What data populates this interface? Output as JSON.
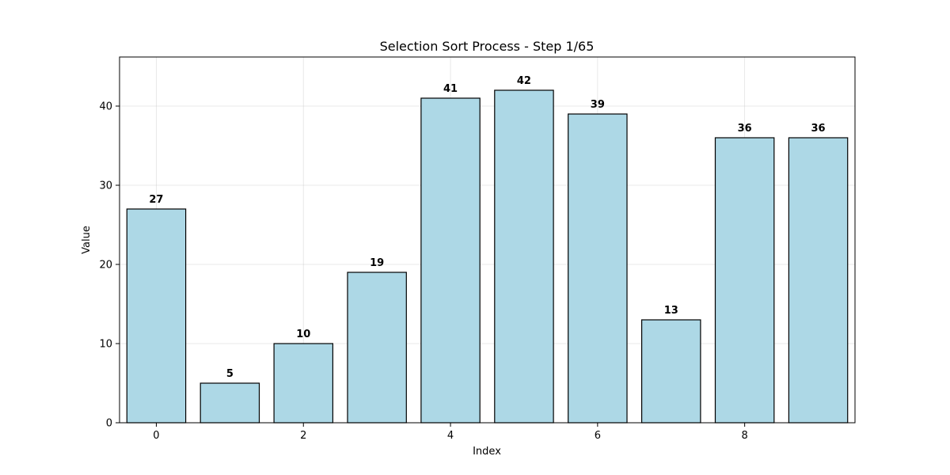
{
  "chart_data": {
    "type": "bar",
    "title": "Selection Sort Process - Step 1/65",
    "xlabel": "Index",
    "ylabel": "Value",
    "categories": [
      0,
      1,
      2,
      3,
      4,
      5,
      6,
      7,
      8,
      9
    ],
    "values": [
      27,
      5,
      10,
      19,
      41,
      42,
      39,
      13,
      36,
      36
    ],
    "x_ticks": [
      0,
      2,
      4,
      6,
      8
    ],
    "y_ticks": [
      0,
      10,
      20,
      30,
      40
    ],
    "xlim": [
      -0.5,
      9.5
    ],
    "ylim": [
      0,
      46.2
    ],
    "grid": true,
    "bar_color": "#add8e6",
    "edge_color": "#000000"
  }
}
